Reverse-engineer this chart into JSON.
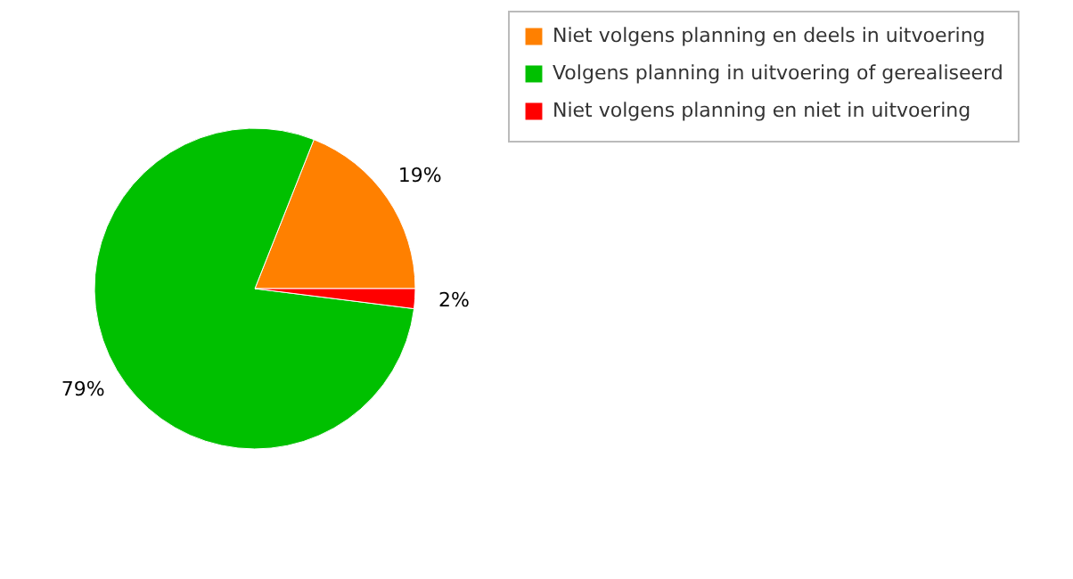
{
  "chart_data": {
    "type": "pie",
    "categories": [
      "Niet volgens planning en deels in uitvoering",
      "Volgens planning in uitvoering of gerealiseerd",
      "Niet volgens planning en niet in uitvoering"
    ],
    "values": [
      19,
      79,
      2
    ],
    "colors": [
      "#ff8000",
      "#00c000",
      "#ff0000"
    ],
    "value_labels": [
      "19%",
      "79%",
      "2%"
    ],
    "legend": "top right"
  }
}
